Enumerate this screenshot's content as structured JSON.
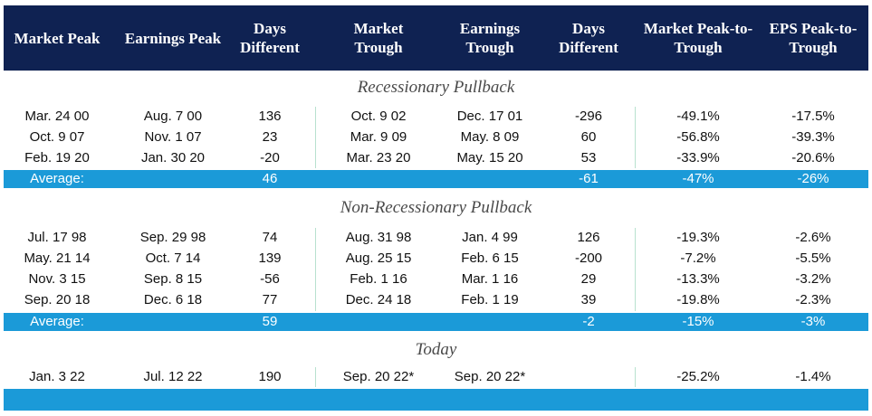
{
  "headers": [
    "Market Peak",
    "Earnings Peak",
    "Days Different",
    "Market Trough",
    "Earnings Trough",
    "Days Different",
    "Market Peak-to-Trough",
    "EPS Peak-to-Trough"
  ],
  "sections": {
    "recessionary": {
      "title": "Recessionary Pullback",
      "rows": [
        [
          "Mar. 24 00",
          "Aug. 7 00",
          "136",
          "Oct. 9 02",
          "Dec. 17 01",
          "-296",
          "-49.1%",
          "-17.5%"
        ],
        [
          "Oct. 9 07",
          "Nov. 1 07",
          "23",
          "Mar. 9 09",
          "May. 8 09",
          "60",
          "-56.8%",
          "-39.3%"
        ],
        [
          "Feb. 19 20",
          "Jan. 30 20",
          "-20",
          "Mar. 23 20",
          "May. 15 20",
          "53",
          "-33.9%",
          "-20.6%"
        ]
      ],
      "average": [
        "Average:",
        "",
        "46",
        "",
        "",
        "-61",
        "-47%",
        "-26%"
      ]
    },
    "non_recessionary": {
      "title": "Non-Recessionary Pullback",
      "rows": [
        [
          "Jul. 17 98",
          "Sep. 29 98",
          "74",
          "Aug. 31 98",
          "Jan. 4 99",
          "126",
          "-19.3%",
          "-2.6%"
        ],
        [
          "May. 21 14",
          "Oct. 7 14",
          "139",
          "Aug. 25 15",
          "Feb. 6 15",
          "-200",
          "-7.2%",
          "-5.5%"
        ],
        [
          "Nov. 3 15",
          "Sep. 8 15",
          "-56",
          "Feb. 1 16",
          "Mar. 1 16",
          "29",
          "-13.3%",
          "-3.2%"
        ],
        [
          "Sep. 20 18",
          "Dec. 6 18",
          "77",
          "Dec. 24 18",
          "Feb. 1 19",
          "39",
          "-19.8%",
          "-2.3%"
        ]
      ],
      "average": [
        "Average:",
        "",
        "59",
        "",
        "",
        "-2",
        "-15%",
        "-3%"
      ]
    },
    "today": {
      "title": "Today",
      "rows": [
        [
          "Jan. 3 22",
          "Jul. 12 22",
          "190",
          "Sep. 20 22*",
          "Sep. 20 22*",
          "",
          "-25.2%",
          "-1.4%"
        ]
      ],
      "average": [
        "",
        "",
        "",
        "",
        "",
        "",
        "",
        ""
      ]
    }
  },
  "colors": {
    "header_bg": "#0f2252",
    "average_bg": "#1b9ad8",
    "section_text": "#4a4a4a"
  }
}
